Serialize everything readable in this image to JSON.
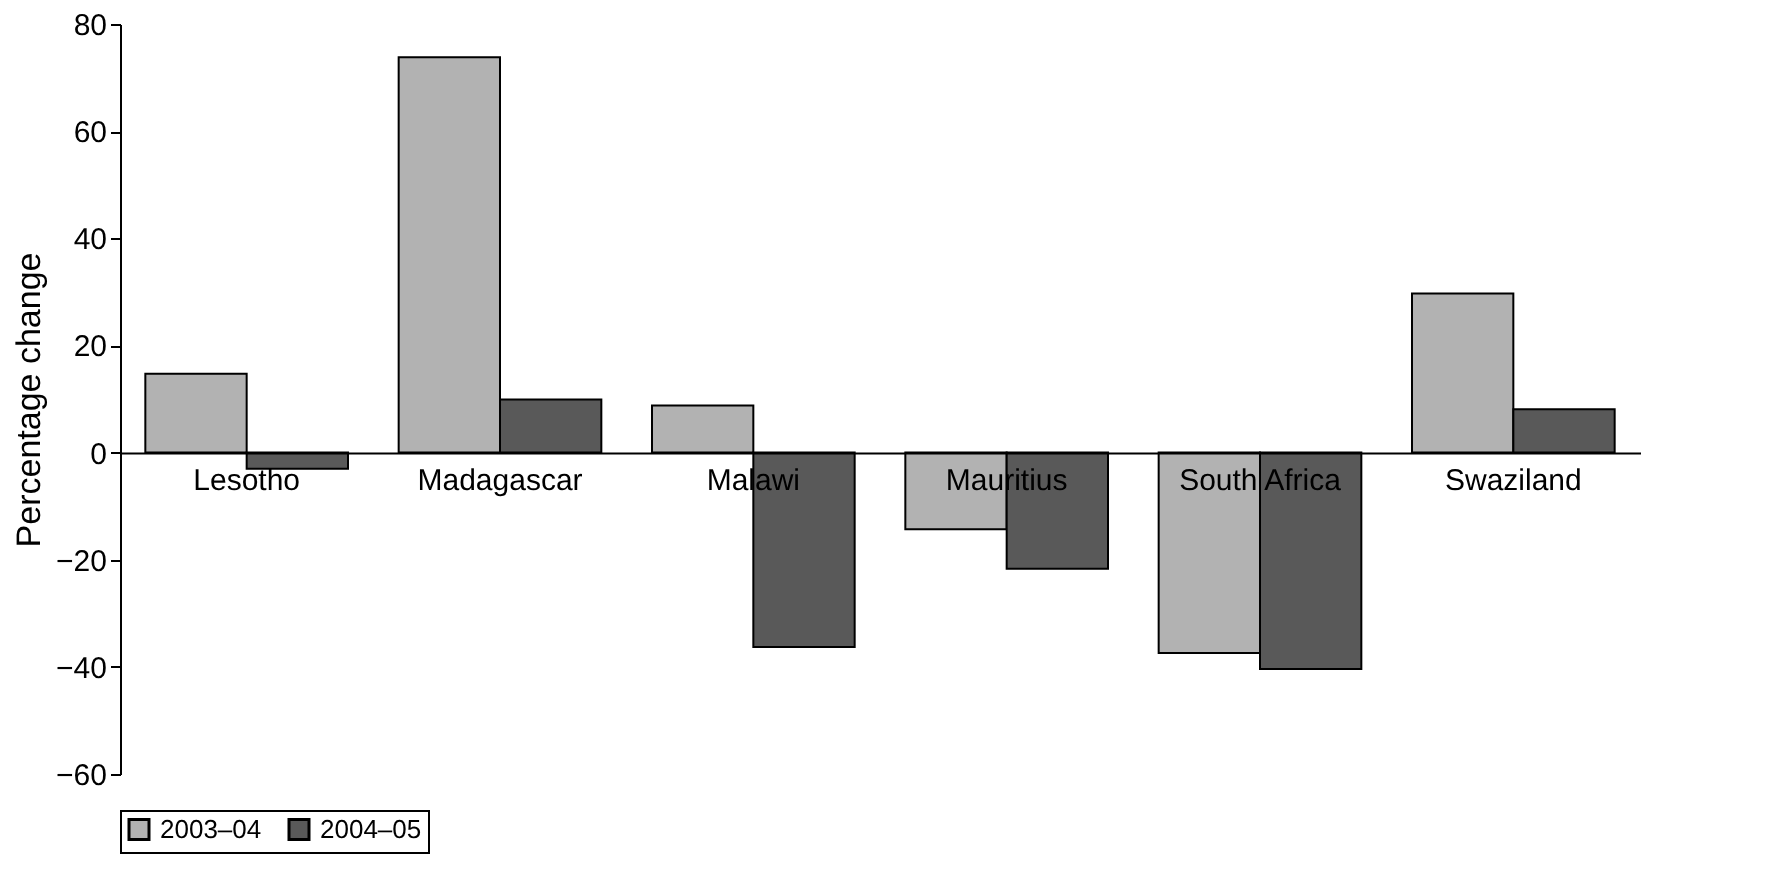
{
  "chart_data": {
    "type": "bar",
    "ylabel": "Percentage change",
    "categories": [
      "Lesotho",
      "Madagascar",
      "Malawi",
      "Mauritius",
      "South Africa",
      "Swaziland"
    ],
    "series": [
      {
        "name": "2003–04",
        "color": "#b2b2b2",
        "values": [
          14.7,
          73.8,
          8.8,
          -14.3,
          -37.4,
          29.7
        ]
      },
      {
        "name": "2004–05",
        "color": "#595959",
        "values": [
          -3,
          9.9,
          -36.3,
          -21.7,
          -40.4,
          8.1
        ]
      }
    ],
    "ylim": [
      -60,
      80
    ],
    "yticks": [
      -60,
      -40,
      -20,
      0,
      20,
      40,
      60,
      80
    ],
    "grid": false,
    "legend": "bottom"
  }
}
